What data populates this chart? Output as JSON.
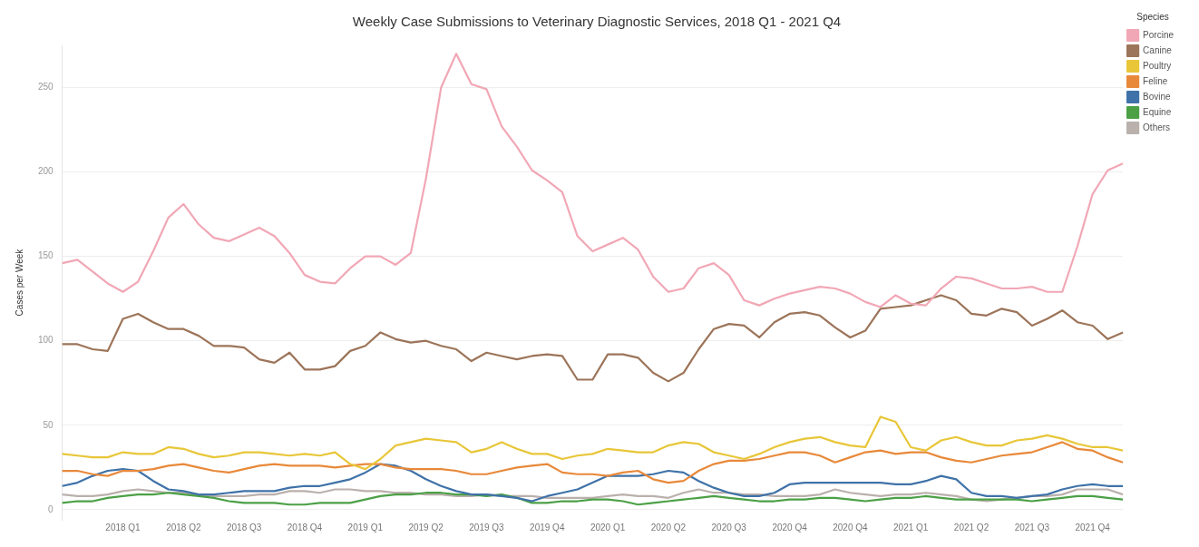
{
  "chart_data": {
    "type": "line",
    "title": "Weekly Case Submissions to Veterinary Diagnostic Services, 2018 Q1 - 2021 Q4",
    "ylabel": "Cases per Week",
    "legend_title": "Species",
    "legend": "top right",
    "grid": "y",
    "categories": [
      null,
      null,
      null,
      null,
      "2018 Q1",
      null,
      null,
      null,
      "2018 Q2",
      null,
      null,
      null,
      "2018 Q3",
      null,
      null,
      null,
      "2018 Q4",
      null,
      null,
      null,
      "2019 Q1",
      null,
      null,
      null,
      "2019 Q2",
      null,
      null,
      null,
      "2019 Q3",
      null,
      null,
      null,
      "2019 Q4",
      null,
      null,
      null,
      "2020 Q1",
      null,
      null,
      null,
      "2020 Q2",
      null,
      null,
      null,
      "2020 Q3",
      null,
      null,
      null,
      "2020 Q4",
      null,
      null,
      null,
      "2020 Q4",
      null,
      null,
      null,
      "2021 Q1",
      null,
      null,
      null,
      "2021 Q2",
      null,
      null,
      null,
      "2021 Q3",
      null,
      null,
      null,
      "2021 Q4",
      null,
      null
    ],
    "ylim": [
      -6,
      275
    ],
    "yticks": [
      0,
      50,
      100,
      150,
      200,
      250
    ],
    "series": [
      {
        "name": "Porcine",
        "color": "#f1a7b5",
        "values": [
          146,
          148,
          141,
          134,
          129,
          135,
          153,
          173,
          181,
          169,
          161,
          159,
          163,
          167,
          162,
          152,
          139,
          135,
          134,
          143,
          150,
          150,
          145,
          152,
          196,
          250,
          270,
          252,
          249,
          227,
          215,
          201,
          195,
          188,
          162,
          153,
          157,
          161,
          154,
          138,
          129,
          131,
          143,
          146,
          139,
          124,
          121,
          125,
          128,
          130,
          132,
          131,
          128,
          123,
          120,
          127,
          122,
          121,
          131,
          138,
          137,
          134,
          131,
          131,
          132,
          129,
          129,
          156,
          187,
          201,
          205
        ]
      },
      {
        "name": "Canine",
        "color": "#9c7459",
        "values": [
          98,
          98,
          95,
          94,
          113,
          116,
          111,
          107,
          107,
          103,
          97,
          97,
          96,
          89,
          87,
          93,
          83,
          83,
          85,
          94,
          97,
          105,
          101,
          99,
          100,
          97,
          95,
          88,
          93,
          91,
          89,
          91,
          92,
          91,
          77,
          77,
          92,
          92,
          90,
          81,
          76,
          81,
          95,
          107,
          110,
          109,
          102,
          111,
          116,
          117,
          115,
          108,
          102,
          106,
          119,
          120,
          121,
          124,
          127,
          124,
          116,
          115,
          119,
          117,
          109,
          113,
          118,
          111,
          109,
          101,
          105
        ]
      },
      {
        "name": "Poultry",
        "color": "#e8c638",
        "values": [
          33,
          32,
          31,
          31,
          34,
          33,
          33,
          37,
          36,
          33,
          31,
          32,
          34,
          34,
          33,
          32,
          33,
          32,
          34,
          27,
          24,
          30,
          38,
          40,
          42,
          41,
          40,
          34,
          36,
          40,
          36,
          33,
          33,
          30,
          32,
          33,
          36,
          35,
          34,
          34,
          38,
          40,
          39,
          34,
          32,
          30,
          33,
          37,
          40,
          42,
          43,
          40,
          38,
          37,
          55,
          52,
          37,
          35,
          41,
          43,
          40,
          38,
          38,
          41,
          42,
          44,
          42,
          39,
          37,
          37,
          35
        ]
      },
      {
        "name": "Feline",
        "color": "#e8893a",
        "values": [
          23,
          23,
          21,
          20,
          23,
          23,
          24,
          26,
          27,
          25,
          23,
          22,
          24,
          26,
          27,
          26,
          26,
          26,
          25,
          26,
          27,
          27,
          25,
          24,
          24,
          24,
          23,
          21,
          21,
          23,
          25,
          26,
          27,
          22,
          21,
          21,
          20,
          22,
          23,
          18,
          16,
          17,
          23,
          27,
          29,
          29,
          30,
          32,
          34,
          34,
          32,
          28,
          31,
          34,
          35,
          33,
          34,
          34,
          31,
          29,
          28,
          30,
          32,
          33,
          34,
          37,
          40,
          36,
          35,
          31,
          28
        ]
      },
      {
        "name": "Bovine",
        "color": "#3f72a8",
        "values": [
          14,
          16,
          20,
          23,
          24,
          23,
          17,
          12,
          11,
          9,
          9,
          10,
          11,
          11,
          11,
          13,
          14,
          14,
          16,
          18,
          22,
          27,
          26,
          23,
          18,
          14,
          11,
          9,
          9,
          8,
          7,
          5,
          8,
          10,
          12,
          16,
          20,
          20,
          20,
          21,
          23,
          22,
          17,
          13,
          10,
          8,
          8,
          10,
          15,
          16,
          16,
          16,
          16,
          16,
          16,
          15,
          15,
          17,
          20,
          18,
          10,
          8,
          8,
          7,
          8,
          9,
          12,
          14,
          15,
          14,
          14
        ]
      },
      {
        "name": "Equine",
        "color": "#4ba046",
        "values": [
          4,
          5,
          5,
          7,
          8,
          9,
          9,
          10,
          9,
          8,
          7,
          5,
          4,
          4,
          4,
          3,
          3,
          4,
          4,
          4,
          6,
          8,
          9,
          9,
          10,
          10,
          9,
          9,
          8,
          9,
          7,
          4,
          4,
          5,
          5,
          6,
          6,
          5,
          3,
          4,
          5,
          6,
          7,
          8,
          7,
          6,
          5,
          5,
          6,
          6,
          7,
          7,
          6,
          5,
          6,
          7,
          7,
          8,
          7,
          6,
          6,
          6,
          6,
          6,
          5,
          6,
          7,
          8,
          8,
          7,
          6
        ]
      },
      {
        "name": "Others",
        "color": "#bab0ac",
        "values": [
          9,
          8,
          8,
          9,
          11,
          12,
          11,
          10,
          10,
          9,
          8,
          8,
          8,
          9,
          9,
          11,
          11,
          10,
          12,
          12,
          11,
          11,
          10,
          10,
          9,
          9,
          8,
          8,
          9,
          8,
          8,
          8,
          7,
          7,
          7,
          7,
          8,
          9,
          8,
          8,
          7,
          10,
          12,
          10,
          10,
          9,
          9,
          8,
          8,
          8,
          9,
          12,
          10,
          9,
          8,
          9,
          9,
          10,
          9,
          8,
          6,
          5,
          6,
          7,
          8,
          8,
          9,
          12,
          12,
          12,
          9
        ]
      }
    ]
  }
}
